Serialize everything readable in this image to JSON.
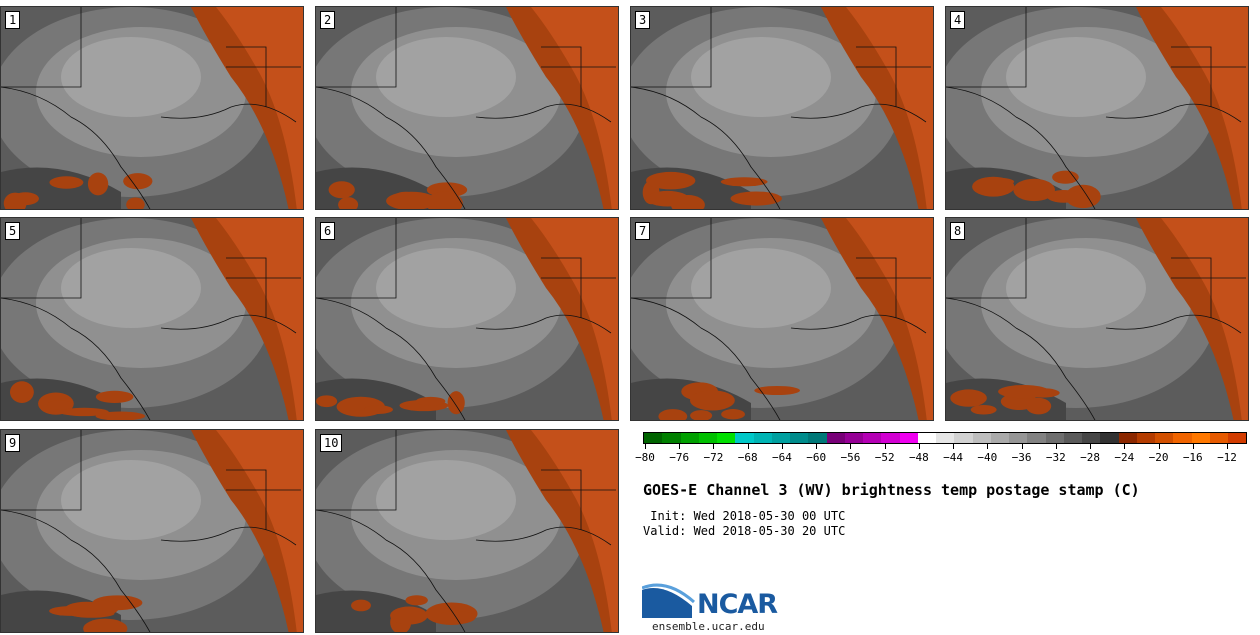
{
  "panels": [
    {
      "label": "1"
    },
    {
      "label": "2"
    },
    {
      "label": "3"
    },
    {
      "label": "4"
    },
    {
      "label": "5"
    },
    {
      "label": "6"
    },
    {
      "label": "7"
    },
    {
      "label": "8"
    },
    {
      "label": "9"
    },
    {
      "label": "10"
    }
  ],
  "legend": {
    "colors": [
      "#006400",
      "#008000",
      "#00a000",
      "#00c000",
      "#00e000",
      "#00c8c8",
      "#00b4b4",
      "#00a0a0",
      "#008c8c",
      "#007878",
      "#780078",
      "#960096",
      "#b400b4",
      "#d200d2",
      "#f000f0",
      "#ffffff",
      "#e6e6e6",
      "#d2d2d2",
      "#bebebe",
      "#aaaaaa",
      "#969696",
      "#828282",
      "#6e6e6e",
      "#5a5a5a",
      "#464646",
      "#323232",
      "#8c2800",
      "#b43c00",
      "#d25000",
      "#f06400",
      "#ff7800",
      "#e65a00",
      "#d23c00"
    ],
    "ticks": [
      "-80",
      "-76",
      "-72",
      "-68",
      "-64",
      "-60",
      "-56",
      "-52",
      "-48",
      "-44",
      "-40",
      "-36",
      "-32",
      "-28",
      "-24",
      "-20",
      "-16",
      "-12"
    ]
  },
  "title": "GOES-E Channel 3 (WV) brightness temp postage stamp (C)",
  "init": " Init: Wed 2018-05-30 00 UTC",
  "valid": "Valid: Wed 2018-05-30 20 UTC",
  "logo": {
    "name": "NCAR",
    "url": "ensemble.ucar.edu"
  }
}
